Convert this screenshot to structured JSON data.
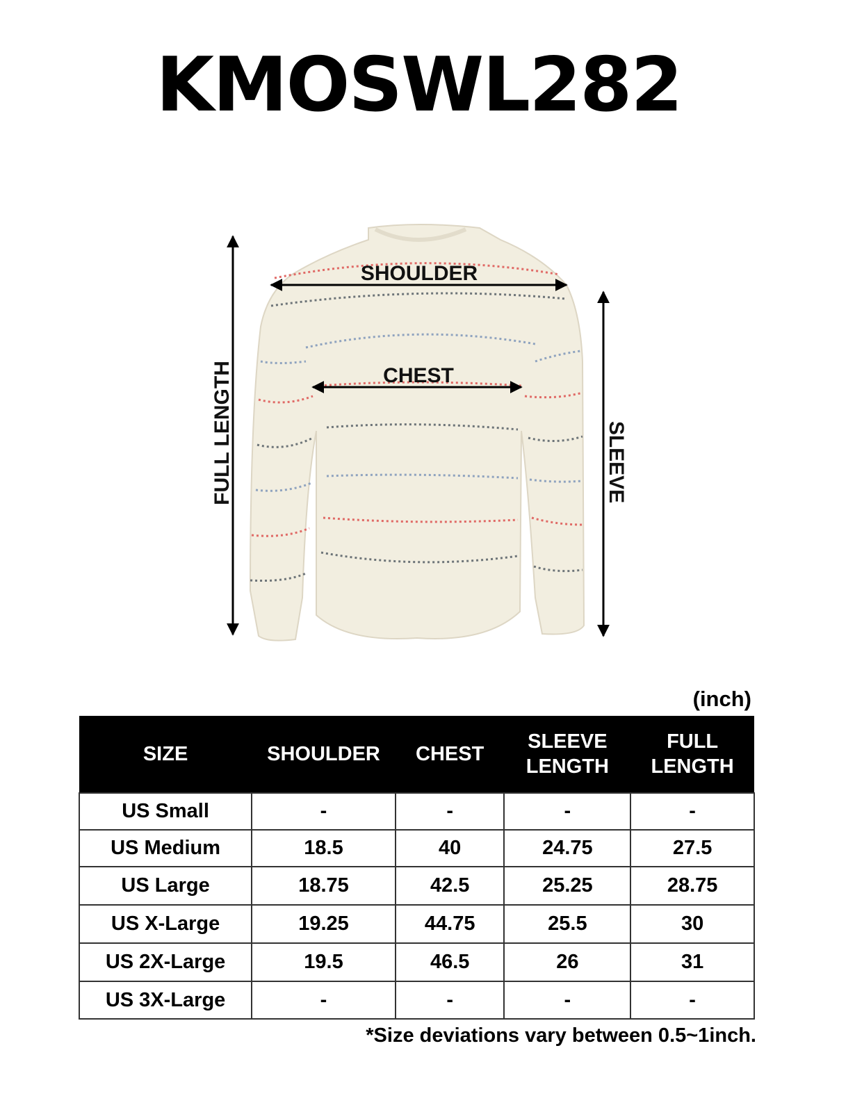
{
  "title": "KMOSWL282",
  "figure": {
    "labels": {
      "shoulder": "SHOULDER",
      "chest": "CHEST",
      "full_length": "FULL LENGTH",
      "sleeve": "SLEEVE"
    },
    "colors": {
      "sweater": "#f2eee0",
      "stripe_red": "#e06a66",
      "stripe_blue": "#8fa3bf",
      "stripe_gray": "#6d7478"
    }
  },
  "unit": "(inch)",
  "table": {
    "headers": [
      "SIZE",
      "SHOULDER",
      "CHEST",
      "SLEEVE LENGTH",
      "FULL LENGTH"
    ],
    "rows": [
      [
        "US Small",
        "-",
        "-",
        "-",
        "-"
      ],
      [
        "US Medium",
        "18.5",
        "40",
        "24.75",
        "27.5"
      ],
      [
        "US Large",
        "18.75",
        "42.5",
        "25.25",
        "28.75"
      ],
      [
        "US X-Large",
        "19.25",
        "44.75",
        "25.5",
        "30"
      ],
      [
        "US 2X-Large",
        "19.5",
        "46.5",
        "26",
        "31"
      ],
      [
        "US 3X-Large",
        "-",
        "-",
        "-",
        "-"
      ]
    ]
  },
  "note": "*Size deviations vary between 0.5~1inch."
}
